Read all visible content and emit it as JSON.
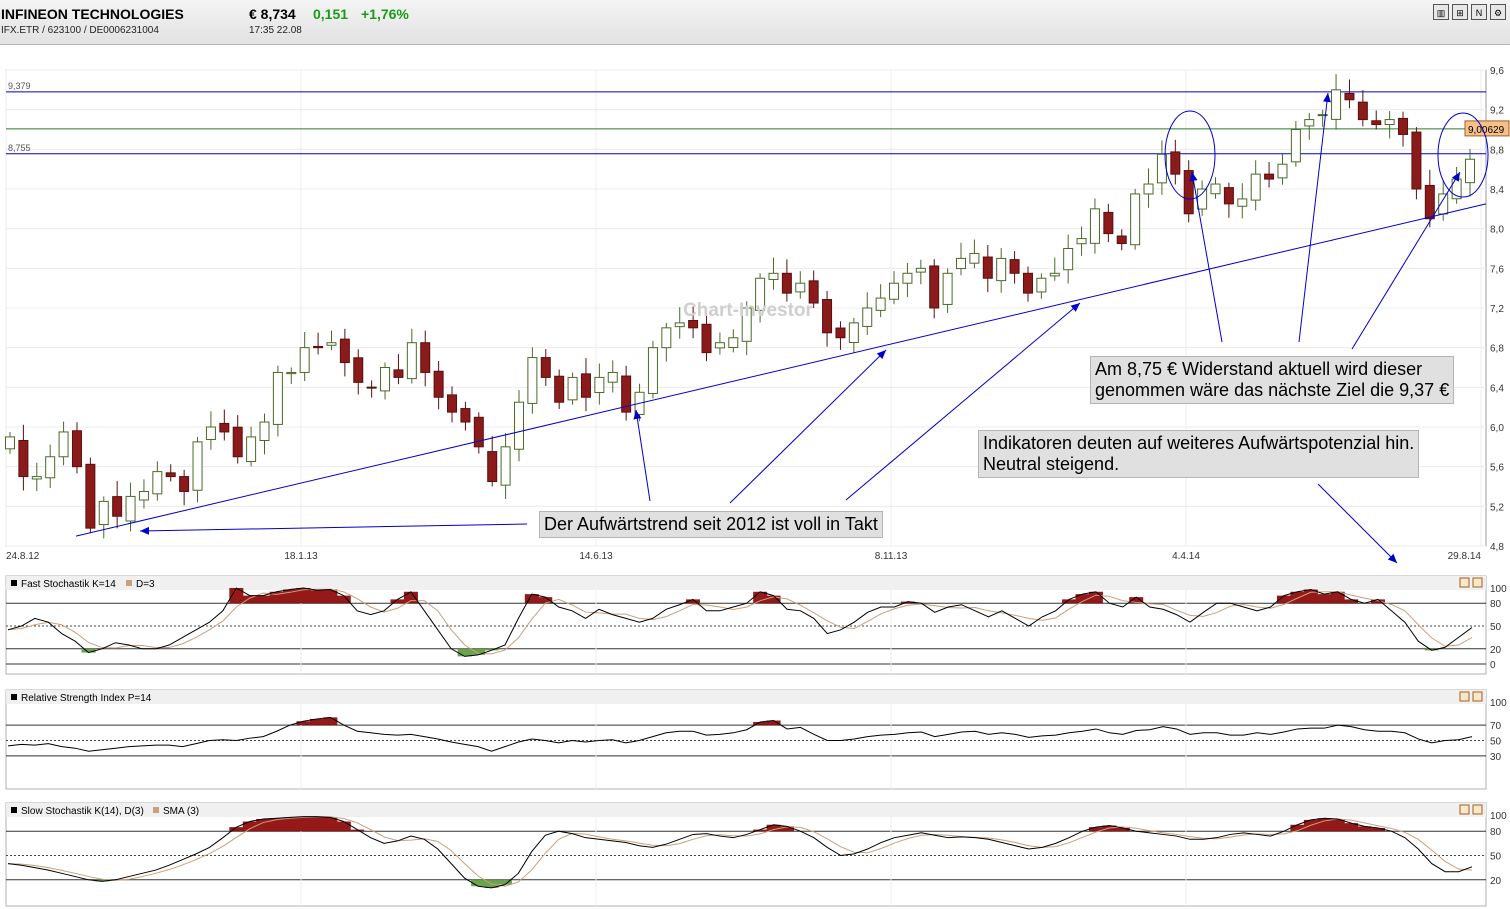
{
  "header": {
    "company": "INFINEON TECHNOLOGIES",
    "symbol_line": "IFX.ETR  /  623100  /  DE0006231004",
    "price": "€ 8,734",
    "change": "0,151",
    "change_pct": "+1,76%",
    "time_date": "17:35  22.08",
    "toolbar_icons": [
      "bar-chart-icon",
      "candle-icon",
      "news-icon",
      "settings-icon"
    ]
  },
  "watermark": "Chart-Investor",
  "annotations": {
    "trend": "Der Aufwärtstrend seit 2012 ist voll in Takt",
    "resistance_line1": "Am 8,75 € Widerstand aktuell wird dieser",
    "resistance_line2": "genommen wäre das nächste Ziel die 9,37 €",
    "indicators_line1": "Indikatoren deuten auf weiteres Aufwärtspotenzial hin.",
    "indicators_line2": "Neutral steigend."
  },
  "colors": {
    "up_candle": "#ffffff",
    "down_candle": "#8b1a1a",
    "overbought": "#8b0000",
    "oversold": "#5a9a3a",
    "line_blue": "#0000cc"
  },
  "chart_data": {
    "type": "candlestick",
    "x_labels": [
      "24.8.12",
      "18.1.13",
      "14.6.13",
      "8.11.13",
      "4.4.14",
      "29.8.14"
    ],
    "y_ticks": [
      "9,6",
      "9,2",
      "8,8",
      "8,4",
      "8,0",
      "7,6",
      "7,2",
      "6,8",
      "6,4",
      "6,0",
      "5,6",
      "5,2",
      "4,8"
    ],
    "ylim": [
      4.8,
      9.6
    ],
    "last_price_label": "9,00629",
    "levels": [
      {
        "value": 9.379,
        "label": "9,379"
      },
      {
        "value": 8.755,
        "label": "8,755"
      },
      {
        "value": 9.006,
        "label": ""
      }
    ],
    "trendline": {
      "from": {
        "date": "24.8.12",
        "value": 4.9
      },
      "to": {
        "date": "29.8.14",
        "value": 8.25
      }
    },
    "closes": [
      5.9,
      5.5,
      5.5,
      5.7,
      5.95,
      5.6,
      4.98,
      5.25,
      5.1,
      5.3,
      5.35,
      5.55,
      5.5,
      5.35,
      5.85,
      6.0,
      5.95,
      5.7,
      5.9,
      6.05,
      6.55,
      6.55,
      6.8,
      6.8,
      6.85,
      6.65,
      6.45,
      6.4,
      6.6,
      6.5,
      6.85,
      6.55,
      6.3,
      6.15,
      6.05,
      5.8,
      5.45,
      5.8,
      6.25,
      6.7,
      6.5,
      6.25,
      6.5,
      6.3,
      6.5,
      6.55,
      6.15,
      6.35,
      6.8,
      7.0,
      7.05,
      7.0,
      6.75,
      6.85,
      6.9,
      7.2,
      7.5,
      7.55,
      7.35,
      7.45,
      7.25,
      6.95,
      6.9,
      7.05,
      7.2,
      7.3,
      7.45,
      7.55,
      7.6,
      7.2,
      7.55,
      7.7,
      7.75,
      7.5,
      7.7,
      7.55,
      7.35,
      7.5,
      7.55,
      7.8,
      7.9,
      8.2,
      7.95,
      7.85,
      8.35,
      8.45,
      8.75,
      8.55,
      8.15,
      8.4,
      8.45,
      8.25,
      8.3,
      8.55,
      8.5,
      8.65,
      9.0,
      9.1,
      9.15,
      9.4,
      9.3,
      9.1,
      9.05,
      9.1,
      8.95,
      8.4,
      8.1,
      8.35,
      8.5,
      8.7
    ],
    "panels": [
      {
        "title": "Fast Stochastik K=14",
        "legend": "D=3",
        "levels": [
          "100",
          "80",
          "50",
          "20",
          "0"
        ]
      },
      {
        "title": "Relative Strength Index P=14",
        "legend": "",
        "levels": [
          "100",
          "70",
          "50",
          "30"
        ]
      },
      {
        "title": "Slow Stochastik K(14), D(3)",
        "legend": "SMA (3)",
        "levels": [
          "100",
          "80",
          "50",
          "20"
        ]
      }
    ],
    "fast_k": [
      45,
      50,
      60,
      55,
      40,
      30,
      15,
      20,
      28,
      25,
      20,
      20,
      25,
      35,
      45,
      55,
      70,
      100,
      90,
      90,
      95,
      98,
      100,
      97,
      98,
      90,
      70,
      65,
      70,
      85,
      95,
      70,
      45,
      20,
      10,
      12,
      18,
      25,
      60,
      92,
      88,
      75,
      70,
      60,
      72,
      65,
      60,
      55,
      60,
      72,
      78,
      85,
      70,
      70,
      75,
      80,
      95,
      90,
      72,
      70,
      60,
      40,
      45,
      55,
      68,
      75,
      75,
      82,
      80,
      68,
      75,
      78,
      70,
      62,
      70,
      60,
      50,
      62,
      70,
      85,
      92,
      95,
      80,
      75,
      88,
      75,
      72,
      65,
      55,
      68,
      80,
      80,
      75,
      70,
      75,
      90,
      95,
      98,
      92,
      95,
      85,
      80,
      85,
      70,
      55,
      30,
      18,
      22,
      35,
      48
    ],
    "rsi": [
      43,
      45,
      44,
      46,
      42,
      40,
      36,
      38,
      40,
      42,
      43,
      44,
      44,
      42,
      46,
      50,
      51,
      50,
      53,
      55,
      62,
      70,
      75,
      78,
      80,
      70,
      62,
      60,
      58,
      57,
      58,
      55,
      52,
      48,
      45,
      42,
      36,
      42,
      48,
      52,
      50,
      47,
      50,
      48,
      50,
      51,
      47,
      50,
      55,
      60,
      62,
      62,
      57,
      58,
      60,
      64,
      74,
      76,
      65,
      67,
      58,
      50,
      50,
      52,
      55,
      57,
      58,
      60,
      61,
      55,
      58,
      61,
      62,
      58,
      60,
      58,
      54,
      56,
      57,
      60,
      62,
      65,
      60,
      58,
      63,
      64,
      68,
      65,
      58,
      60,
      60,
      57,
      57,
      60,
      58,
      61,
      65,
      66,
      66,
      70,
      68,
      64,
      62,
      62,
      60,
      52,
      47,
      50,
      51,
      55
    ],
    "slow_k": [
      40,
      38,
      35,
      32,
      28,
      24,
      20,
      18,
      20,
      24,
      28,
      32,
      38,
      45,
      52,
      60,
      72,
      85,
      92,
      95,
      96,
      97,
      98,
      98,
      97,
      92,
      82,
      72,
      65,
      68,
      74,
      70,
      58,
      40,
      22,
      12,
      10,
      14,
      28,
      55,
      75,
      80,
      77,
      72,
      70,
      68,
      66,
      62,
      60,
      64,
      70,
      76,
      77,
      74,
      72,
      76,
      82,
      88,
      86,
      80,
      72,
      60,
      50,
      52,
      58,
      66,
      72,
      75,
      78,
      75,
      72,
      73,
      72,
      70,
      66,
      62,
      58,
      60,
      65,
      72,
      80,
      85,
      87,
      84,
      80,
      78,
      76,
      74,
      70,
      70,
      72,
      76,
      78,
      76,
      74,
      80,
      88,
      94,
      96,
      95,
      90,
      86,
      84,
      80,
      72,
      58,
      40,
      30,
      30,
      36
    ]
  }
}
